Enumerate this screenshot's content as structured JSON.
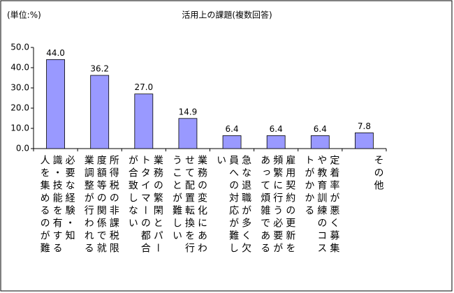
{
  "chart_data": {
    "type": "bar",
    "title": "活用上の課題(複数回答)",
    "unit_label": "(単位:%)",
    "categories": [
      "必要な経験・知識・技能を有する人を集めるのが難",
      "所得税の非課税限度額等の関係で就業調整が行われる",
      "業務の繁閑とパートタイマーの都合が合致しない",
      "業務の変化にあわせて配置転換を行うことが難しい",
      "急な退職が多く欠員への対応が難しい",
      "雇用契約の更新を頻繁に行う必要があって煩雑である",
      "定着率が悪く募集や教育訓練のコストがかかる",
      "その他"
    ],
    "values": [
      44.0,
      36.2,
      27.0,
      14.9,
      6.4,
      6.4,
      6.4,
      7.8
    ],
    "value_labels": [
      "44.0",
      "36.2",
      "27.0",
      "14.9",
      "6.4",
      "6.4",
      "6.4",
      "7.8"
    ],
    "color": "#9999ff",
    "ylim": [
      0,
      50
    ],
    "yticks": [
      {
        "value": 0,
        "label": "0.0"
      },
      {
        "value": 10,
        "label": "10.0"
      },
      {
        "value": 20,
        "label": "20.0"
      },
      {
        "value": 30,
        "label": "30.0"
      },
      {
        "value": 40,
        "label": "40.0"
      },
      {
        "value": 50,
        "label": "50.0"
      }
    ],
    "grid": false
  }
}
